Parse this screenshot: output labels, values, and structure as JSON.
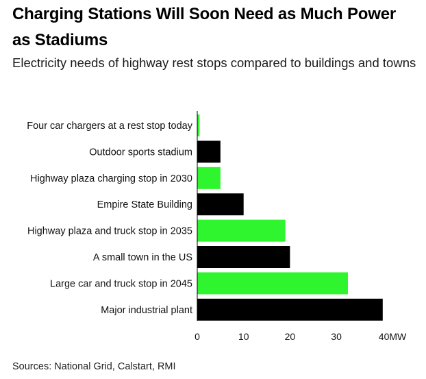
{
  "title": "Charging Stations Will Soon Need as Much Power as Stadiums",
  "subtitle": "Electricity needs of highway rest stops compared to buildings and towns",
  "source": "Sources: National Grid, Calstart, RMI",
  "colors": {
    "green": "#2ef52e",
    "black": "#000000",
    "axis": "#000000"
  },
  "chart_data": {
    "type": "bar",
    "orientation": "horizontal",
    "categories": [
      "Four car chargers at a rest stop today",
      "Outdoor sports stadium",
      "Highway plaza charging stop in 2030",
      "Empire State Building",
      "Highway plaza and truck stop in 2035",
      "A small town in the US",
      "Large car and truck stop in 2045",
      "Major industrial plant"
    ],
    "values": [
      0.5,
      5,
      5,
      10,
      19,
      20,
      32.5,
      40
    ],
    "bar_colors": [
      "green",
      "black",
      "green",
      "black",
      "green",
      "black",
      "green",
      "black"
    ],
    "xlim": [
      0,
      40
    ],
    "xticks": [
      0,
      10,
      20,
      30,
      40
    ],
    "xtick_labels": [
      "0",
      "10",
      "20",
      "30",
      "40MW"
    ],
    "xlabel": "",
    "ylabel": "",
    "grid": false,
    "legend": "none"
  }
}
